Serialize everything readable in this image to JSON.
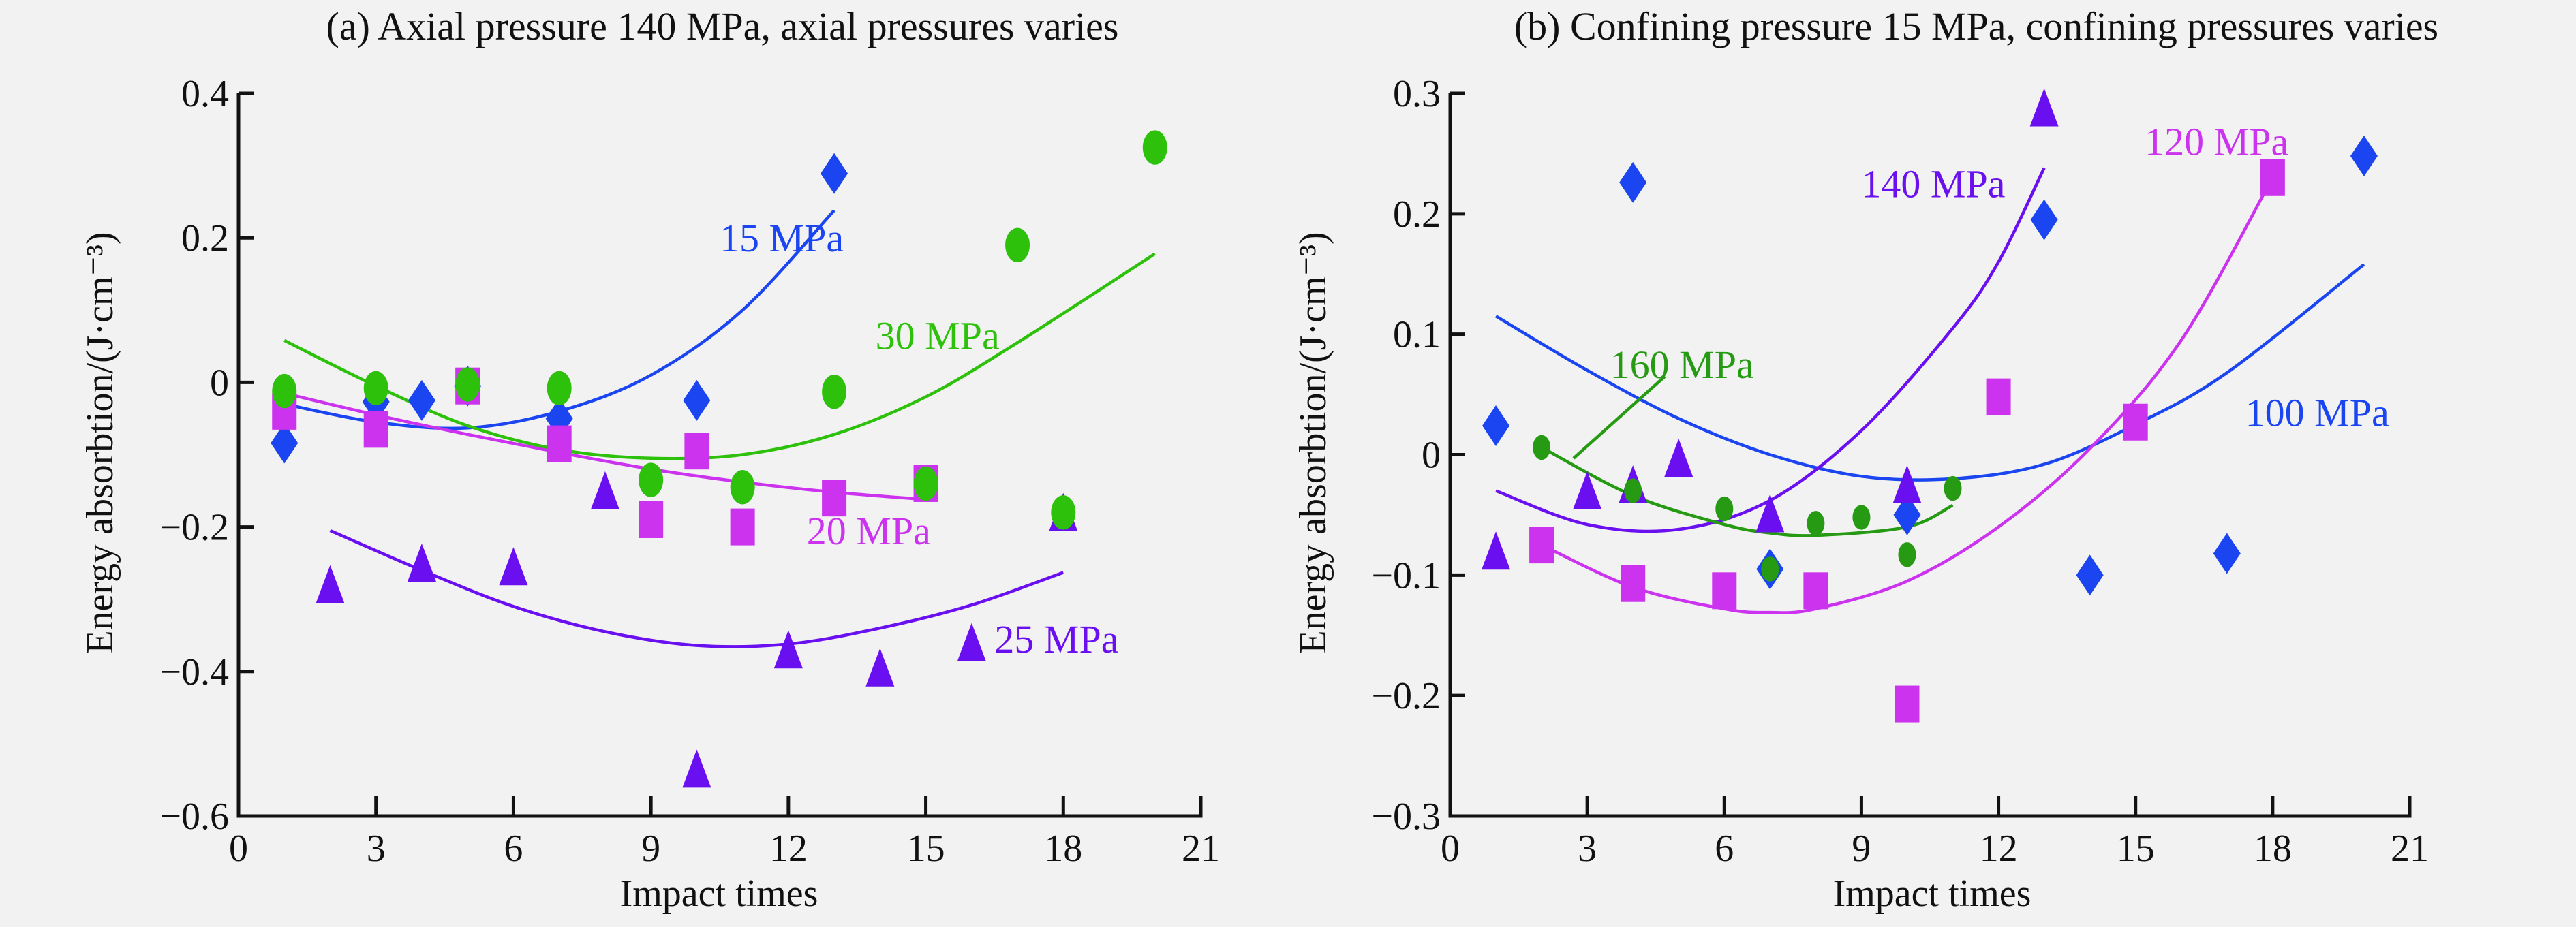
{
  "chart_data": [
    {
      "type": "scatter",
      "id": "a",
      "title": "(a) Axial pressure 140 MPa, axial pressures varies",
      "xlabel": "Impact times",
      "ylabel": "Energy absorbtion/(J·cm⁻³)",
      "xlim": [
        0,
        21
      ],
      "ylim": [
        -0.6,
        0.4
      ],
      "xticks": [
        0,
        3,
        6,
        9,
        12,
        15,
        18,
        21
      ],
      "xtick_labels": [
        "0",
        "3",
        "6",
        "9",
        "12",
        "15",
        "18",
        "21"
      ],
      "yticks": [
        0.4,
        0.2,
        0,
        -0.2,
        -0.4,
        -0.6
      ],
      "ytick_labels": [
        "0.4",
        "0.2",
        "0",
        "−0.2",
        "−0.4",
        "−0.6"
      ],
      "grid": false,
      "legend": "inline labels next to fit curves",
      "series": [
        {
          "name": "15 MPa",
          "marker": "diamond",
          "color": "#1a45f0",
          "x": [
            1,
            3,
            4,
            5,
            7,
            10,
            13
          ],
          "y": [
            -0.084,
            -0.027,
            -0.025,
            -0.005,
            -0.05,
            -0.025,
            0.289
          ],
          "fit": {
            "x": [
              1,
              3,
              5,
              7,
              9,
              11,
              13
            ],
            "y": [
              -0.03,
              -0.055,
              -0.063,
              -0.04,
              0.01,
              0.1,
              0.238
            ]
          },
          "label_pos": [
            10.5,
            0.2
          ]
        },
        {
          "name": "20 MPa",
          "marker": "square",
          "color": "#cc33ee",
          "x": [
            1,
            3,
            5,
            7,
            9,
            10,
            11,
            13,
            15
          ],
          "y": [
            -0.04,
            -0.065,
            -0.005,
            -0.085,
            -0.19,
            -0.095,
            -0.2,
            -0.16,
            -0.14
          ],
          "fit": {
            "x": [
              1,
              3,
              5,
              7,
              9,
              11,
              13,
              15
            ],
            "y": [
              -0.015,
              -0.045,
              -0.072,
              -0.097,
              -0.12,
              -0.138,
              -0.152,
              -0.162
            ]
          },
          "label_pos": [
            12.4,
            -0.205
          ]
        },
        {
          "name": "25 MPa",
          "marker": "triangle",
          "color": "#6a10f0",
          "x": [
            2,
            4,
            6,
            8,
            10,
            12,
            14,
            16,
            18
          ],
          "y": [
            -0.285,
            -0.255,
            -0.26,
            -0.155,
            -0.54,
            -0.375,
            -0.4,
            -0.365,
            -0.185
          ],
          "fit": {
            "x": [
              2,
              4,
              6,
              8,
              10,
              12,
              14,
              16,
              18
            ],
            "y": [
              -0.205,
              -0.26,
              -0.31,
              -0.345,
              -0.364,
              -0.362,
              -0.34,
              -0.308,
              -0.263
            ]
          },
          "label_pos": [
            16.5,
            -0.355
          ]
        },
        {
          "name": "30 MPa",
          "marker": "circle",
          "color": "#2ec10c",
          "x": [
            1,
            3,
            5,
            7,
            9,
            11,
            13,
            15,
            17,
            18,
            20
          ],
          "y": [
            -0.012,
            -0.008,
            -0.003,
            -0.008,
            -0.135,
            -0.145,
            -0.013,
            -0.14,
            0.19,
            -0.18,
            0.325
          ],
          "fit": {
            "x": [
              1,
              3,
              5,
              7,
              9,
              11,
              13,
              15,
              17,
              20
            ],
            "y": [
              0.058,
              -0.005,
              -0.06,
              -0.093,
              -0.105,
              -0.1,
              -0.072,
              -0.02,
              0.055,
              0.178
            ]
          },
          "label_pos": [
            13.9,
            0.065
          ]
        }
      ]
    },
    {
      "type": "scatter",
      "id": "b",
      "title": "(b) Confining pressure 15 MPa, confining pressures varies",
      "xlabel": "Impact times",
      "ylabel": "Energy absorbtion/(J·cm⁻³)",
      "xlim": [
        0,
        21
      ],
      "ylim": [
        -0.3,
        0.3
      ],
      "xticks": [
        0,
        3,
        6,
        9,
        12,
        15,
        18,
        21
      ],
      "xtick_labels": [
        "0",
        "3",
        "6",
        "9",
        "12",
        "15",
        "18",
        "21"
      ],
      "yticks": [
        0.3,
        0.2,
        0.1,
        0,
        -0.1,
        -0.2,
        -0.3
      ],
      "ytick_labels": [
        "0.3",
        "0.2",
        "0.1",
        "0",
        "−0.1",
        "−0.2",
        "−0.3"
      ],
      "grid": false,
      "legend": "inline labels next to fit curves",
      "series": [
        {
          "name": "100 MPa",
          "marker": "diamond",
          "color": "#1a45f0",
          "x": [
            1,
            4,
            7,
            10,
            13,
            14,
            17,
            20
          ],
          "y": [
            0.024,
            0.226,
            -0.095,
            -0.05,
            0.195,
            -0.1,
            -0.082,
            0.248
          ],
          "fit": {
            "x": [
              1,
              3,
              5,
              7,
              9,
              11,
              13,
              15,
              17,
              20
            ],
            "y": [
              0.115,
              0.07,
              0.03,
              0.0,
              -0.018,
              -0.02,
              -0.008,
              0.025,
              0.068,
              0.158
            ]
          },
          "label_pos": [
            17.4,
            0.035
          ]
        },
        {
          "name": "120 MPa",
          "marker": "square",
          "color": "#cc33ee",
          "x": [
            2,
            4,
            6,
            8,
            10,
            12,
            15,
            18
          ],
          "y": [
            -0.075,
            -0.107,
            -0.113,
            -0.113,
            -0.207,
            0.048,
            0.027,
            0.23
          ],
          "fit": {
            "x": [
              2,
              4,
              6,
              7,
              8,
              10,
              12,
              14,
              16,
              18
            ],
            "y": [
              -0.075,
              -0.11,
              -0.128,
              -0.131,
              -0.128,
              -0.105,
              -0.06,
              0.005,
              0.095,
              0.23
            ]
          },
          "label_pos": [
            15.2,
            0.26
          ]
        },
        {
          "name": "140 MPa",
          "marker": "triangle",
          "color": "#6a10f0",
          "x": [
            1,
            3,
            4,
            5,
            7,
            10,
            13
          ],
          "y": [
            -0.083,
            -0.033,
            -0.028,
            -0.006,
            -0.052,
            -0.028,
            0.285
          ],
          "fit": {
            "x": [
              1,
              3,
              5,
              7,
              9,
              11,
              12,
              13
            ],
            "y": [
              -0.03,
              -0.058,
              -0.062,
              -0.038,
              0.02,
              0.105,
              0.16,
              0.238
            ]
          },
          "label_pos": [
            9.0,
            0.225
          ]
        },
        {
          "name": "160 MPa",
          "marker": "circle",
          "color": "#259a12",
          "x": [
            2,
            4,
            6,
            7,
            8,
            9,
            10,
            11
          ],
          "y": [
            0.006,
            -0.03,
            -0.045,
            -0.095,
            -0.057,
            -0.052,
            -0.083,
            -0.028
          ],
          "fit": {
            "x": [
              2,
              4,
              6,
              7,
              8,
              10,
              11
            ],
            "y": [
              0.006,
              -0.034,
              -0.058,
              -0.065,
              -0.067,
              -0.06,
              -0.042
            ]
          },
          "label_pos": [
            3.5,
            0.075
          ],
          "leader": {
            "x": [
              2.7,
              4.7
            ],
            "y": [
              -0.003,
              0.065
            ]
          }
        }
      ]
    }
  ]
}
